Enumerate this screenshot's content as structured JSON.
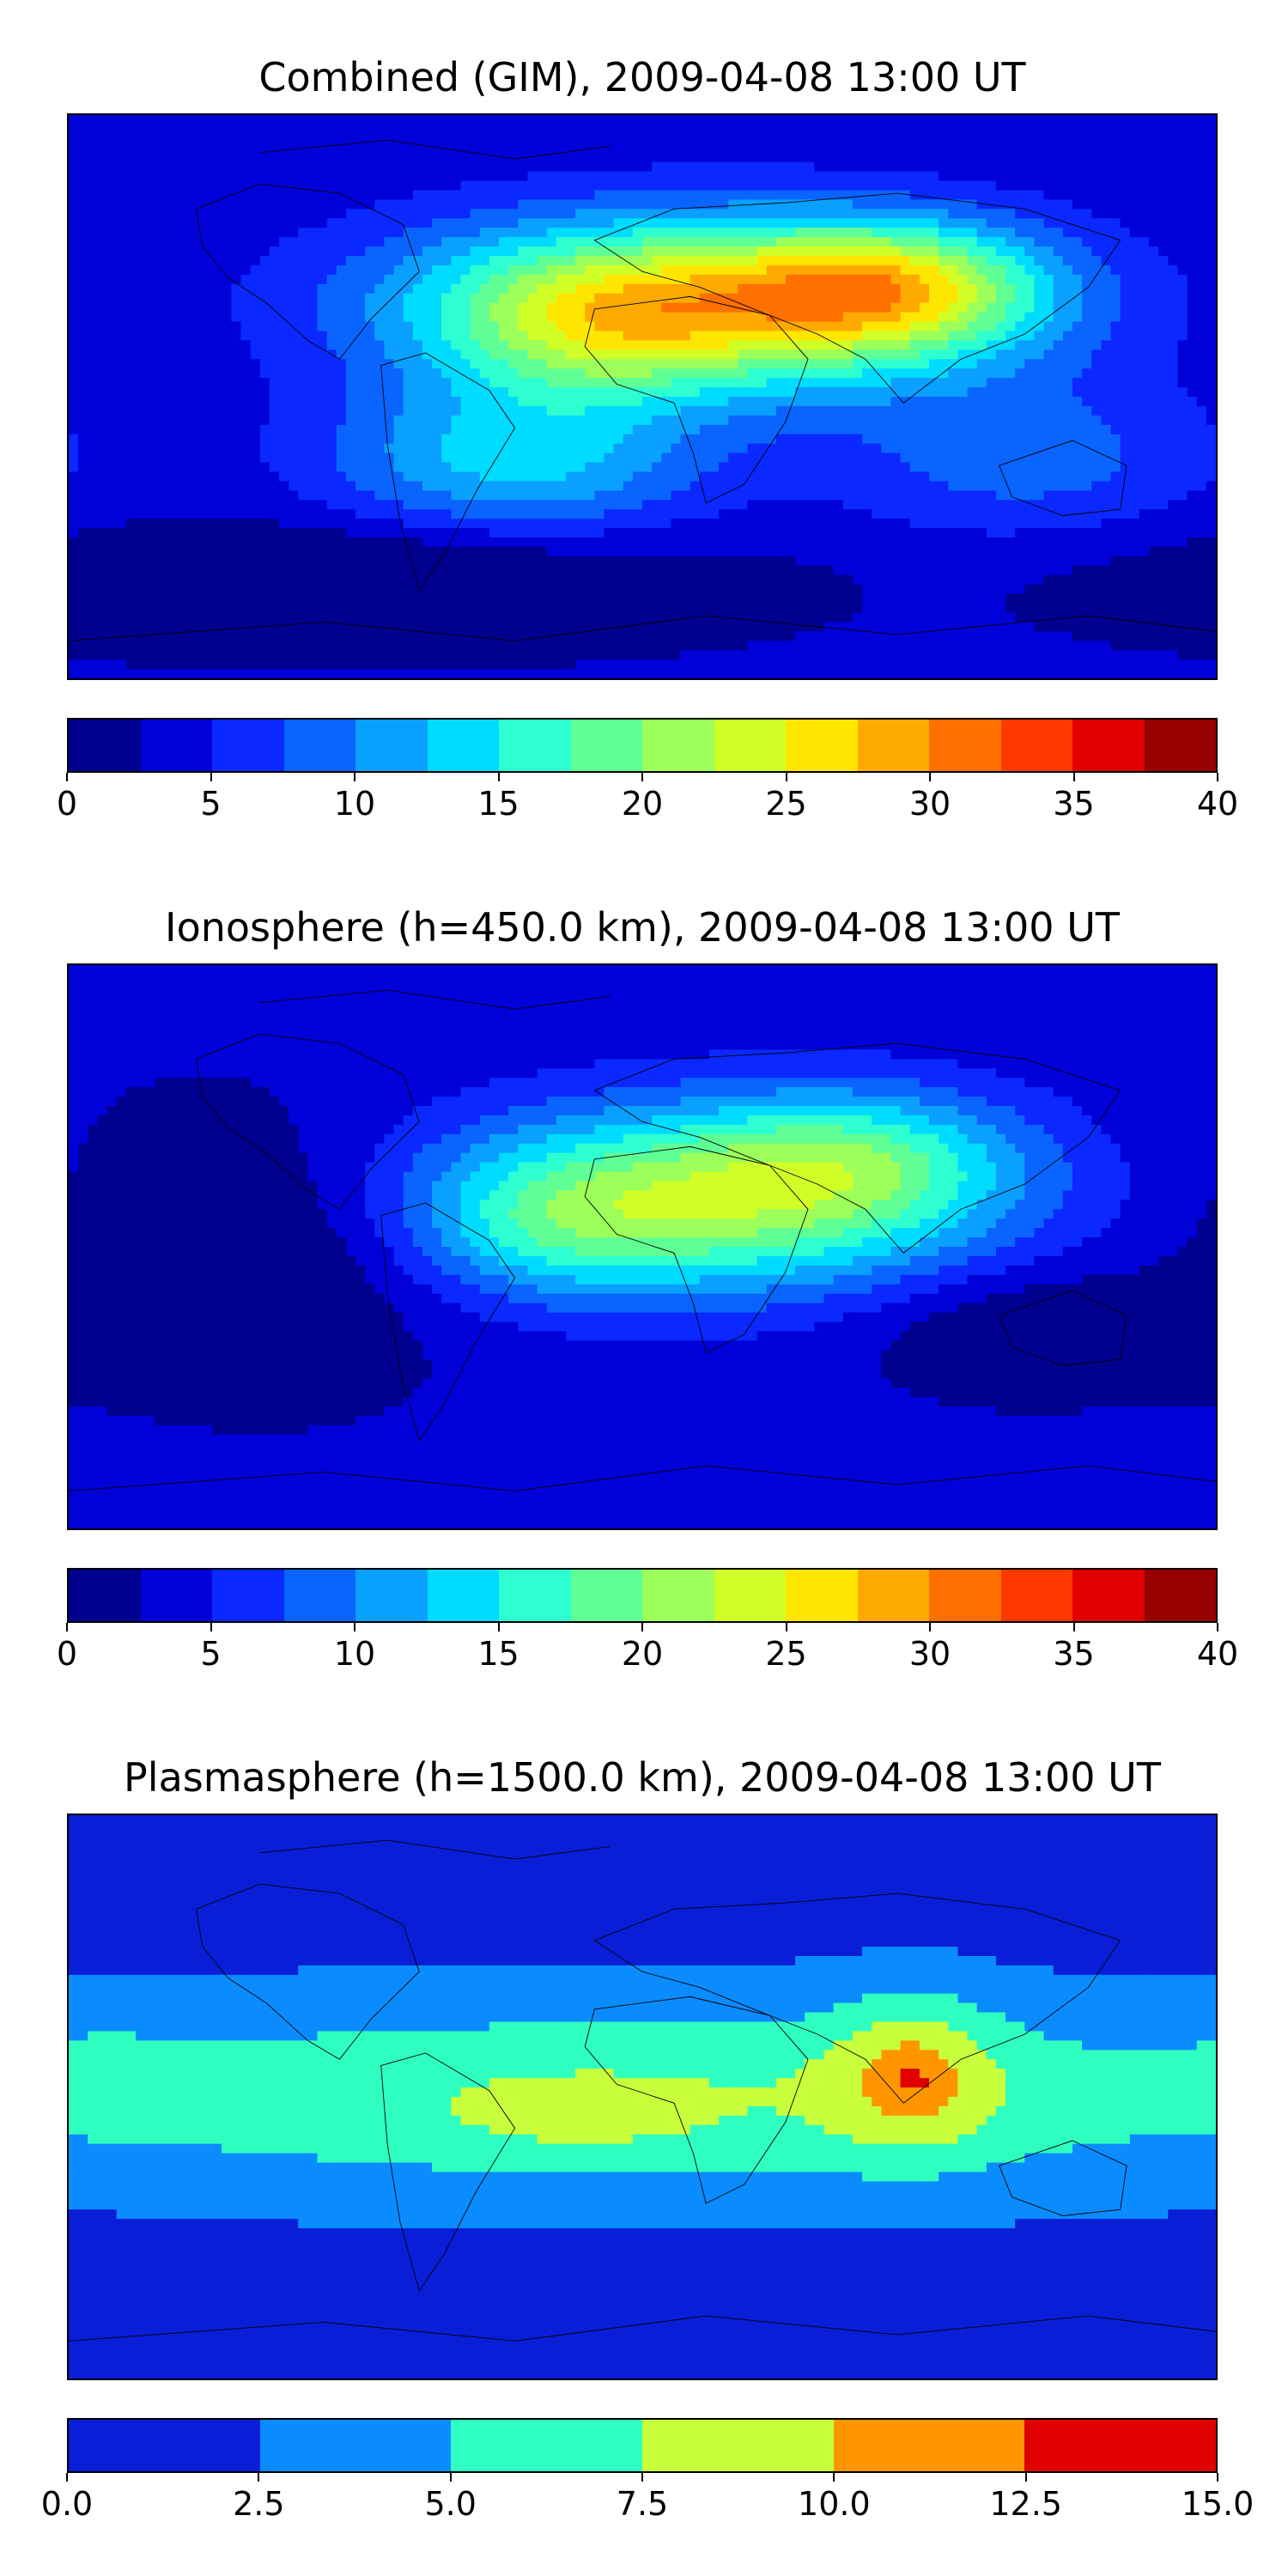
{
  "chart_data": [
    {
      "type": "heatmap",
      "title": "Combined (GIM), 2009-04-08 13:00 UT",
      "xlabel": "",
      "ylabel": "",
      "colorbar": {
        "levels": [
          0,
          2.5,
          5,
          7.5,
          10,
          12.5,
          15,
          17.5,
          20,
          22.5,
          25,
          27.5,
          30,
          32.5,
          35,
          37.5,
          40
        ],
        "ticks": [
          "0",
          "5",
          "10",
          "15",
          "20",
          "25",
          "30",
          "35",
          "40"
        ],
        "tick_values": [
          0,
          5,
          10,
          15,
          20,
          25,
          30,
          35,
          40
        ],
        "colors": [
          "#00008f",
          "#0000d8",
          "#0a28ff",
          "#0a64ff",
          "#0aa0ff",
          "#00dcff",
          "#2effd0",
          "#60ff96",
          "#9cff5a",
          "#d0ff28",
          "#ffe600",
          "#ffaa00",
          "#ff7000",
          "#ff3800",
          "#e00000",
          "#960000"
        ]
      },
      "field_peak": 32,
      "map_projection": "plate carree"
    },
    {
      "type": "heatmap",
      "title": "Ionosphere  (h=450.0 km), 2009-04-08 13:00 UT",
      "xlabel": "",
      "ylabel": "",
      "colorbar": {
        "levels": [
          0,
          2.5,
          5,
          7.5,
          10,
          12.5,
          15,
          17.5,
          20,
          22.5,
          25,
          27.5,
          30,
          32.5,
          35,
          37.5,
          40
        ],
        "ticks": [
          "0",
          "5",
          "10",
          "15",
          "20",
          "25",
          "30",
          "35",
          "40"
        ],
        "tick_values": [
          0,
          5,
          10,
          15,
          20,
          25,
          30,
          35,
          40
        ],
        "colors": [
          "#00008f",
          "#0000d8",
          "#0a28ff",
          "#0a64ff",
          "#0aa0ff",
          "#00dcff",
          "#2effd0",
          "#60ff96",
          "#9cff5a",
          "#d0ff28",
          "#ffe600",
          "#ffaa00",
          "#ff7000",
          "#ff3800",
          "#e00000",
          "#960000"
        ]
      },
      "field_peak": 24,
      "map_projection": "plate carree"
    },
    {
      "type": "heatmap",
      "title": "Plasmasphere (h=1500.0 km), 2009-04-08 13:00 UT",
      "xlabel": "",
      "ylabel": "",
      "colorbar": {
        "levels": [
          0,
          2.5,
          5,
          7.5,
          10,
          12.5,
          15
        ],
        "ticks": [
          "0.0",
          "2.5",
          "5.0",
          "7.5",
          "10.0",
          "12.5",
          "15.0"
        ],
        "tick_values": [
          0,
          2.5,
          5,
          7.5,
          10,
          12.5,
          15
        ],
        "colors": [
          "#0a1ed8",
          "#0a8cff",
          "#2effc0",
          "#c8ff3c",
          "#ff9600",
          "#e00000"
        ]
      },
      "field_peak": 13,
      "map_projection": "plate carree"
    }
  ]
}
